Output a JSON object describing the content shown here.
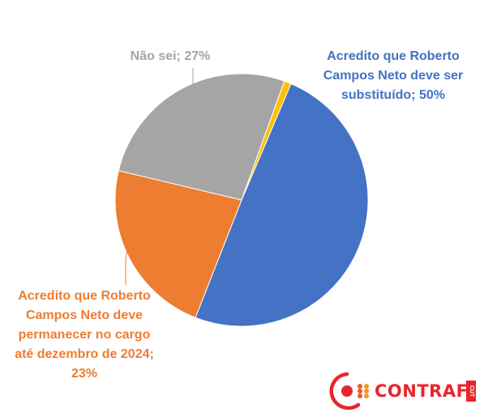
{
  "chart_data": {
    "type": "pie",
    "slices": [
      {
        "label": "Acredito que Roberto\nCampos Neto deve ser\nsubstituído; 50%",
        "value": 50,
        "color": "#4472c4"
      },
      {
        "label": "Acredito que Roberto\nCampos Neto deve\npermanecer no cargo\naté dezembro de 2024;\n23%",
        "value": 23,
        "color": "#ed7d31"
      },
      {
        "label": "Não sei; 27%",
        "value": 27,
        "color": "#a5a5a5"
      },
      {
        "label": "",
        "value": 0.9,
        "color": "#ffc000"
      }
    ],
    "label_colors": [
      "#4472c4",
      "#ed7d31",
      "#a5a5a5"
    ]
  },
  "logo": {
    "text": "CONTRAF",
    "sub": "CUT"
  }
}
